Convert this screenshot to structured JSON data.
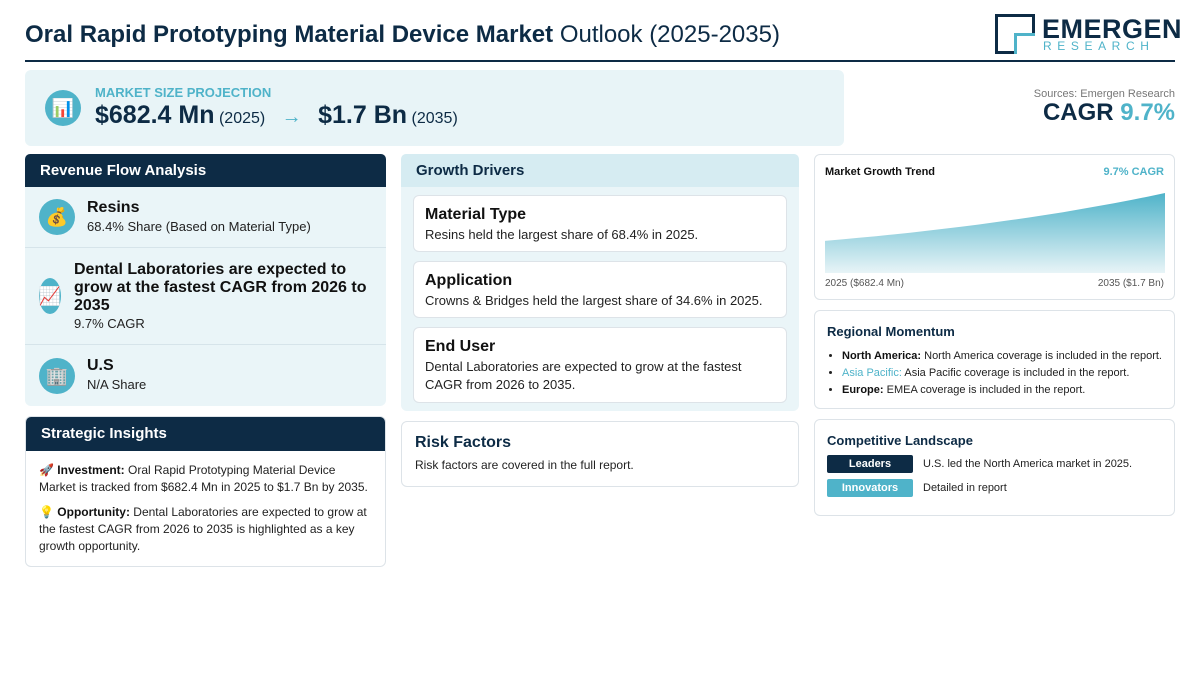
{
  "header": {
    "title_bold": "Oral Rapid Prototyping Material Device Market",
    "title_rest": "Outlook (2025-2035)",
    "logo_top": "EMERGEN",
    "logo_bottom": "RESEARCH"
  },
  "projection": {
    "icon": "bar-chart-icon",
    "label": "MARKET SIZE PROJECTION",
    "start_value": "$682.4 Mn",
    "start_year": "(2025)",
    "arrow": "→",
    "end_value": "$1.7 Bn",
    "end_year": "(2035)"
  },
  "sources": "Sources: Emergen Research",
  "cagr": {
    "label": "CAGR",
    "value": "9.7%"
  },
  "revenue_flow": {
    "title": "Revenue Flow Analysis",
    "items": [
      {
        "icon": "money-bag-icon",
        "title": "Resins",
        "sub": "68.4% Share (Based on Material Type)"
      },
      {
        "icon": "trend-up-icon",
        "title": "Dental Laboratories are expected to grow at the fastest CAGR from 2026 to 2035",
        "sub": "9.7% CAGR"
      },
      {
        "icon": "building-icon",
        "title": "U.S",
        "sub": "N/A Share"
      }
    ]
  },
  "strategic": {
    "title": "Strategic Insights",
    "investment_label": "Investment:",
    "investment_text": "Oral Rapid Prototyping Material Device Market is tracked from $682.4 Mn in 2025 to $1.7 Bn by 2035.",
    "opportunity_label": "Opportunity:",
    "opportunity_text": "Dental Laboratories are expected to grow at the fastest CAGR from 2026 to 2035 is highlighted as a key growth opportunity."
  },
  "growth_drivers": {
    "title": "Growth Drivers",
    "cards": [
      {
        "title": "Material Type",
        "text": "Resins held the largest share of 68.4% in 2025."
      },
      {
        "title": "Application",
        "text": "Crowns & Bridges held the largest share of 34.6% in 2025."
      },
      {
        "title": "End User",
        "text": "Dental Laboratories are expected to grow at the fastest CAGR from 2026 to 2035."
      }
    ]
  },
  "risk": {
    "title": "Risk Factors",
    "text": "Risk factors are covered in the full report."
  },
  "trend": {
    "title": "Market Growth Trend",
    "cagr_label": "9.7% CAGR",
    "start_label": "2025 ($682.4 Mn)",
    "end_label": "2035 ($1.7 Bn)"
  },
  "chart_data": {
    "type": "area",
    "title": "Market Growth Trend",
    "x": [
      2025,
      2035
    ],
    "series": [
      {
        "values": [
          682.4,
          1700
        ]
      }
    ],
    "colors": {
      "fill_start": "#4fb3c9",
      "fill_end": "#e8f4f7"
    }
  },
  "regional": {
    "title": "Regional Momentum",
    "items": [
      {
        "label": "North America:",
        "text": "North America coverage is included in the report."
      },
      {
        "label": "Asia Pacific:",
        "text": "Asia Pacific coverage is included in the report."
      },
      {
        "label": "Europe:",
        "text": "EMEA coverage is included in the report."
      }
    ]
  },
  "competitive": {
    "title": "Competitive Landscape",
    "rows": [
      {
        "pill": "Leaders",
        "text": "U.S. led the North America market in 2025.",
        "color": "#0d2b45"
      },
      {
        "pill": "Innovators",
        "text": "Detailed in report",
        "color": "#4fb3c9"
      }
    ]
  },
  "colors": {
    "navy": "#0d2b45",
    "teal": "#4fb3c9",
    "panel": "#eaf5f8"
  }
}
